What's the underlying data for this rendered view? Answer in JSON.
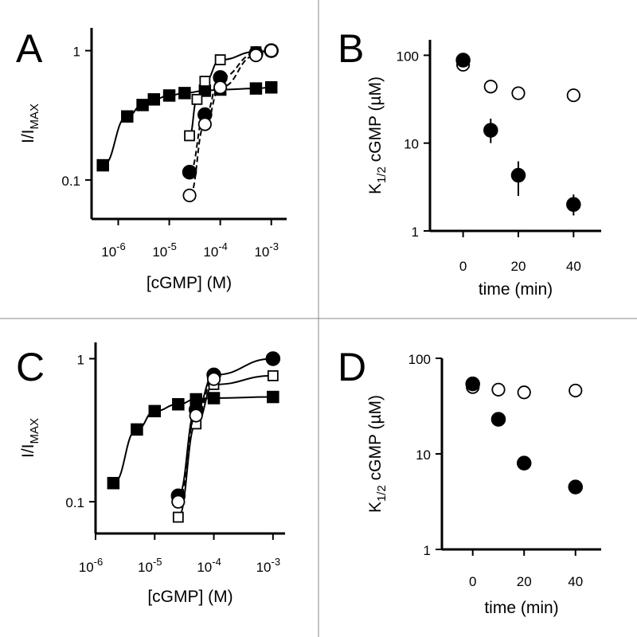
{
  "figure": {
    "background": "#ffffff",
    "divider_color": "#888888"
  },
  "chart_data": [
    {
      "panel": "A",
      "type": "scatter",
      "scale": {
        "x": "log",
        "y": "log"
      },
      "xlim": [
        3e-07,
        0.002
      ],
      "ylim": [
        0.05,
        1.5
      ],
      "xticks": [
        {
          "value": 1e-06,
          "base": "10",
          "exp": "-6"
        },
        {
          "value": 1e-05,
          "base": "10",
          "exp": "-5"
        },
        {
          "value": 0.0001,
          "base": "10",
          "exp": "-4"
        },
        {
          "value": 0.001,
          "base": "10",
          "exp": "-3"
        }
      ],
      "yticks": [
        {
          "value": 0.1,
          "label": "0.1"
        },
        {
          "value": 1,
          "label": "1"
        }
      ],
      "xlabel": "[cGMP] (M)",
      "ylabel": {
        "main": "I/I",
        "sub": "MAX"
      },
      "series": [
        {
          "marker": "filled-square",
          "fit": "solid",
          "x": [
            5e-07,
            1.5e-06,
            3e-06,
            5e-06,
            1e-05,
            2e-05,
            5e-05,
            0.0001,
            0.0005,
            0.001
          ],
          "y": [
            0.13,
            0.31,
            0.38,
            0.42,
            0.45,
            0.47,
            0.49,
            0.5,
            0.51,
            0.52
          ]
        },
        {
          "marker": "open-square",
          "fit": "solid",
          "x": [
            2.5e-05,
            3.5e-05,
            5e-05,
            0.0001,
            0.0005,
            0.001
          ],
          "y": [
            0.22,
            0.42,
            0.58,
            0.85,
            0.98,
            1.0
          ]
        },
        {
          "marker": "filled-circle",
          "fit": "dashed",
          "x": [
            2.5e-05,
            5e-05,
            0.0001,
            0.0005,
            0.001
          ],
          "y": [
            0.115,
            0.32,
            0.62,
            0.95,
            1.0
          ]
        },
        {
          "marker": "open-circle",
          "fit": "dashed",
          "x": [
            2.5e-05,
            5e-05,
            0.0001,
            0.0005,
            0.001
          ],
          "y": [
            0.076,
            0.27,
            0.52,
            0.92,
            1.0
          ]
        }
      ]
    },
    {
      "panel": "B",
      "type": "scatter",
      "scale": {
        "x": "linear",
        "y": "log"
      },
      "xlim": [
        -12,
        50
      ],
      "ylim": [
        1,
        150
      ],
      "xticks": [
        {
          "value": 0,
          "label": "0"
        },
        {
          "value": 20,
          "label": "20"
        },
        {
          "value": 40,
          "label": "40"
        }
      ],
      "yticks": [
        {
          "value": 1,
          "label": "1"
        },
        {
          "value": 10,
          "label": "10"
        },
        {
          "value": 100,
          "label": "100"
        }
      ],
      "xlabel": "time (min)",
      "ylabel": {
        "main": "K",
        "sub": "1/2",
        "rest": " cGMP (µM)"
      },
      "series": [
        {
          "marker": "open-circle",
          "x": [
            0,
            10,
            20,
            40
          ],
          "y": [
            78,
            44,
            37,
            35
          ],
          "err_low": [
            70,
            39,
            32,
            35
          ],
          "err_high": [
            86,
            50,
            42,
            35
          ]
        },
        {
          "marker": "filled-circle",
          "x": [
            0,
            10,
            20,
            40
          ],
          "y": [
            88,
            14,
            4.3,
            2.0
          ],
          "err_low": [
            80,
            10,
            2.5,
            1.5
          ],
          "err_high": [
            95,
            19,
            6.2,
            2.6
          ]
        }
      ]
    },
    {
      "panel": "C",
      "type": "scatter",
      "scale": {
        "x": "log",
        "y": "log"
      },
      "xlim": [
        1e-06,
        0.0016
      ],
      "ylim": [
        0.06,
        1.3
      ],
      "xticks": [
        {
          "value": 1e-06,
          "base": "10",
          "exp": "-6"
        },
        {
          "value": 1e-05,
          "base": "10",
          "exp": "-5"
        },
        {
          "value": 0.0001,
          "base": "10",
          "exp": "-4"
        },
        {
          "value": 0.001,
          "base": "10",
          "exp": "-3"
        }
      ],
      "yticks": [
        {
          "value": 0.1,
          "label": "0.1"
        },
        {
          "value": 1,
          "label": "1"
        }
      ],
      "xlabel": "[cGMP] (M)",
      "ylabel": {
        "main": "I/I",
        "sub": "MAX"
      },
      "series": [
        {
          "marker": "filled-square",
          "fit": "solid",
          "x": [
            2e-06,
            5e-06,
            1e-05,
            2.5e-05,
            5e-05,
            0.0001,
            0.001
          ],
          "y": [
            0.135,
            0.32,
            0.43,
            0.48,
            0.52,
            0.53,
            0.54
          ]
        },
        {
          "marker": "open-square",
          "fit": "solid",
          "x": [
            2.5e-05,
            5e-05,
            0.0001,
            0.001
          ],
          "y": [
            0.078,
            0.35,
            0.66,
            0.76
          ]
        },
        {
          "marker": "filled-circle",
          "fit": "solid",
          "x": [
            2.5e-05,
            5e-05,
            0.0001,
            0.001
          ],
          "y": [
            0.11,
            0.44,
            0.77,
            1.0
          ]
        },
        {
          "marker": "open-circle",
          "fit": "dashed",
          "x": [
            2.5e-05,
            5e-05,
            0.0001
          ],
          "y": [
            0.1,
            0.4,
            0.72
          ]
        }
      ]
    },
    {
      "panel": "D",
      "type": "scatter",
      "scale": {
        "x": "linear",
        "y": "log"
      },
      "xlim": [
        -12,
        50
      ],
      "ylim": [
        1,
        100
      ],
      "xticks": [
        {
          "value": 0,
          "label": "0"
        },
        {
          "value": 20,
          "label": "20"
        },
        {
          "value": 40,
          "label": "40"
        }
      ],
      "yticks": [
        {
          "value": 1,
          "label": "1"
        },
        {
          "value": 10,
          "label": "10"
        },
        {
          "value": 100,
          "label": "100"
        }
      ],
      "xlabel": "time (min)",
      "ylabel": {
        "main": "K",
        "sub": "1/2",
        "rest": " cGMP (µM)"
      },
      "series": [
        {
          "marker": "open-circle",
          "x": [
            0,
            10,
            20,
            40
          ],
          "y": [
            50,
            47,
            44,
            46
          ],
          "err_low": [
            47,
            43,
            40,
            42
          ],
          "err_high": [
            54,
            51,
            48,
            50
          ]
        },
        {
          "marker": "filled-circle",
          "x": [
            0,
            10,
            20,
            40
          ],
          "y": [
            54,
            23,
            8,
            4.5
          ],
          "err_low": [
            54,
            23,
            8,
            4.5
          ],
          "err_high": [
            54,
            23,
            8,
            4.5
          ]
        }
      ]
    }
  ]
}
